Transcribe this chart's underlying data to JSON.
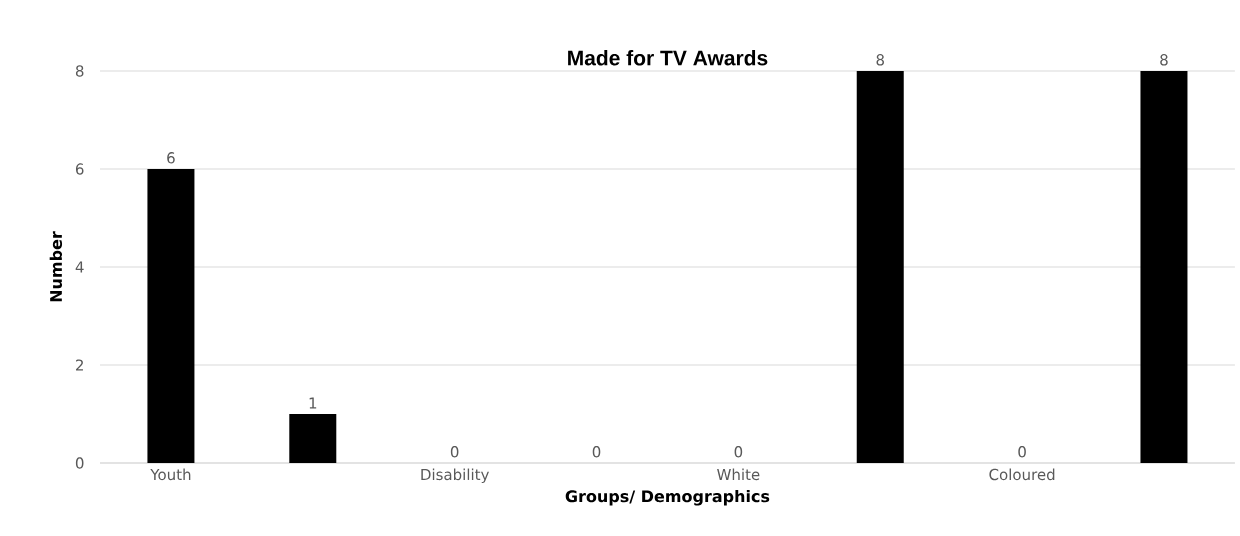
{
  "chart_data": {
    "type": "bar",
    "title": "Made for TV Awards",
    "xlabel": "Groups/ Demographics",
    "ylabel": "Number",
    "categories": [
      "Youth",
      null,
      "Disability",
      null,
      "White",
      null,
      "Coloured",
      null
    ],
    "values": [
      6,
      1,
      0,
      0,
      0,
      8,
      0,
      8
    ],
    "color": "#000000",
    "ylim": [
      0,
      8
    ],
    "yticks": [
      0,
      2,
      4,
      6,
      8
    ],
    "grid": "y",
    "data_labels": true
  }
}
